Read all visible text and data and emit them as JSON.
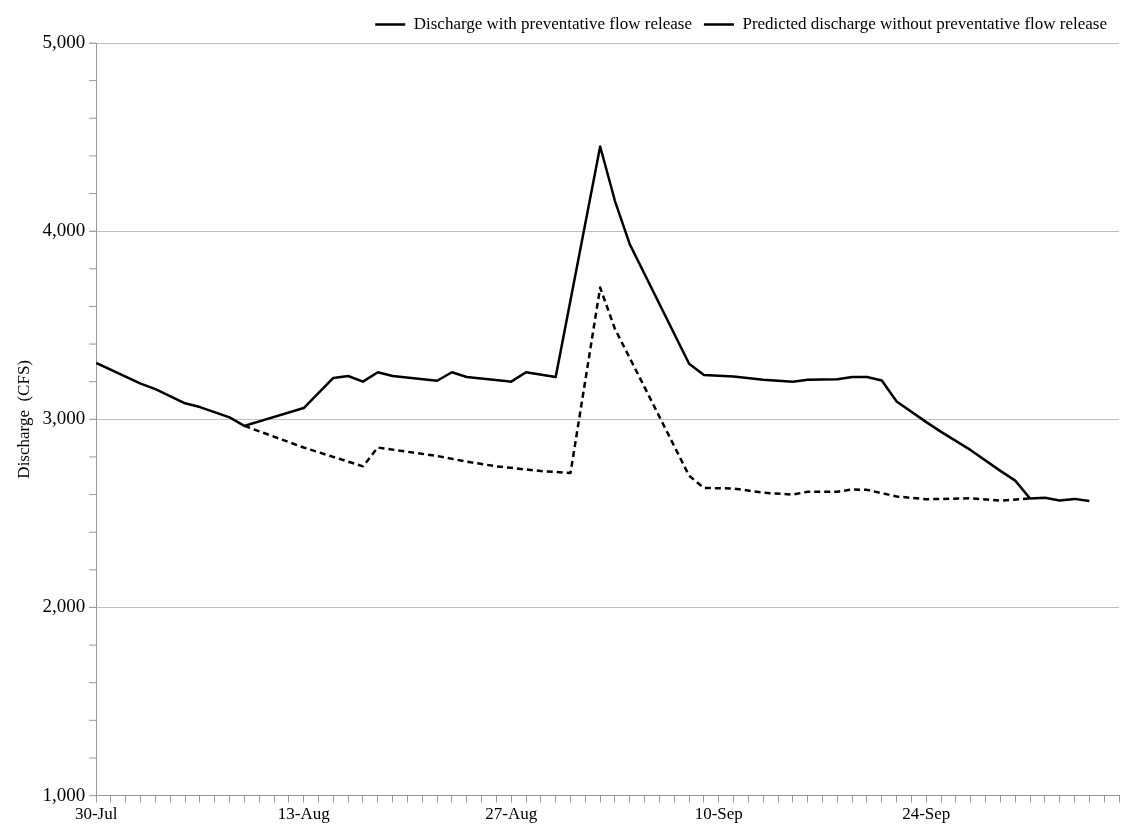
{
  "chart_data": {
    "type": "line",
    "ylabel": "Discharge  (CFS)",
    "legend": "top",
    "grid": "y",
    "marker": "none",
    "xlim": [
      "--07-30",
      "--10-07"
    ],
    "ylim": [
      1000,
      5000
    ],
    "yticks": [
      {
        "value": 1000,
        "label": "1,000"
      },
      {
        "value": 1200,
        "label": null
      },
      {
        "value": 1400,
        "label": null
      },
      {
        "value": 1600,
        "label": null
      },
      {
        "value": 1800,
        "label": null
      },
      {
        "value": 2000,
        "label": "2,000"
      },
      {
        "value": 2200,
        "label": null
      },
      {
        "value": 2400,
        "label": null
      },
      {
        "value": 2600,
        "label": null
      },
      {
        "value": 2800,
        "label": null
      },
      {
        "value": 3000,
        "label": "3,000"
      },
      {
        "value": 3200,
        "label": null
      },
      {
        "value": 3400,
        "label": null
      },
      {
        "value": 3600,
        "label": null
      },
      {
        "value": 3800,
        "label": null
      },
      {
        "value": 4000,
        "label": "4,000"
      },
      {
        "value": 4200,
        "label": null
      },
      {
        "value": 4400,
        "label": null
      },
      {
        "value": 4600,
        "label": null
      },
      {
        "value": 4800,
        "label": null
      },
      {
        "value": 5000,
        "label": "5,000"
      }
    ],
    "xticks": [
      {
        "value": "--07-30",
        "label": "30-Jul"
      },
      {
        "value": "--07-31",
        "label": null
      },
      {
        "value": "--08-01",
        "label": null
      },
      {
        "value": "--08-02",
        "label": null
      },
      {
        "value": "--08-03",
        "label": null
      },
      {
        "value": "--08-04",
        "label": null
      },
      {
        "value": "--08-05",
        "label": null
      },
      {
        "value": "--08-06",
        "label": null
      },
      {
        "value": "--08-07",
        "label": null
      },
      {
        "value": "--08-08",
        "label": null
      },
      {
        "value": "--08-09",
        "label": null
      },
      {
        "value": "--08-10",
        "label": null
      },
      {
        "value": "--08-11",
        "label": null
      },
      {
        "value": "--08-12",
        "label": null
      },
      {
        "value": "--08-13",
        "label": "13-Aug"
      },
      {
        "value": "--08-14",
        "label": null
      },
      {
        "value": "--08-15",
        "label": null
      },
      {
        "value": "--08-16",
        "label": null
      },
      {
        "value": "--08-17",
        "label": null
      },
      {
        "value": "--08-18",
        "label": null
      },
      {
        "value": "--08-19",
        "label": null
      },
      {
        "value": "--08-20",
        "label": null
      },
      {
        "value": "--08-21",
        "label": null
      },
      {
        "value": "--08-22",
        "label": null
      },
      {
        "value": "--08-23",
        "label": null
      },
      {
        "value": "--08-24",
        "label": null
      },
      {
        "value": "--08-25",
        "label": null
      },
      {
        "value": "--08-26",
        "label": null
      },
      {
        "value": "--08-27",
        "label": "27-Aug"
      },
      {
        "value": "--08-28",
        "label": null
      },
      {
        "value": "--08-29",
        "label": null
      },
      {
        "value": "--08-30",
        "label": null
      },
      {
        "value": "--08-31",
        "label": null
      },
      {
        "value": "--09-01",
        "label": null
      },
      {
        "value": "--09-02",
        "label": null
      },
      {
        "value": "--09-03",
        "label": null
      },
      {
        "value": "--09-04",
        "label": null
      },
      {
        "value": "--09-05",
        "label": null
      },
      {
        "value": "--09-06",
        "label": null
      },
      {
        "value": "--09-07",
        "label": null
      },
      {
        "value": "--09-08",
        "label": null
      },
      {
        "value": "--09-09",
        "label": null
      },
      {
        "value": "--09-10",
        "label": "10-Sep"
      },
      {
        "value": "--09-11",
        "label": null
      },
      {
        "value": "--09-12",
        "label": null
      },
      {
        "value": "--09-13",
        "label": null
      },
      {
        "value": "--09-14",
        "label": null
      },
      {
        "value": "--09-15",
        "label": null
      },
      {
        "value": "--09-16",
        "label": null
      },
      {
        "value": "--09-17",
        "label": null
      },
      {
        "value": "--09-18",
        "label": null
      },
      {
        "value": "--09-19",
        "label": null
      },
      {
        "value": "--09-20",
        "label": null
      },
      {
        "value": "--09-21",
        "label": null
      },
      {
        "value": "--09-22",
        "label": null
      },
      {
        "value": "--09-23",
        "label": null
      },
      {
        "value": "--09-24",
        "label": "24-Sep"
      },
      {
        "value": "--09-25",
        "label": null
      },
      {
        "value": "--09-26",
        "label": null
      },
      {
        "value": "--09-27",
        "label": null
      },
      {
        "value": "--09-28",
        "label": null
      },
      {
        "value": "--09-29",
        "label": null
      },
      {
        "value": "--09-30",
        "label": null
      },
      {
        "value": "--10-01",
        "label": null
      },
      {
        "value": "--10-02",
        "label": null
      },
      {
        "value": "--10-03",
        "label": null
      },
      {
        "value": "--10-04",
        "label": null
      },
      {
        "value": "--10-05",
        "label": null
      },
      {
        "value": "--10-06",
        "label": null
      },
      {
        "value": "--10-07",
        "label": null
      }
    ],
    "series": [
      {
        "name": "Discharge with preventative flow release",
        "color": "#000000",
        "line_style": "solid",
        "x": [
          "--07-30",
          "--08-02",
          "--08-03",
          "--08-05",
          "--08-06",
          "--08-08",
          "--08-09",
          "--08-13",
          "--08-15",
          "--08-16",
          "--08-17",
          "--08-18",
          "--08-19",
          "--08-22",
          "--08-23",
          "--08-24",
          "--08-27",
          "--08-28",
          "--08-30",
          "--09-02",
          "--09-03",
          "--09-04",
          "--09-08",
          "--09-09",
          "--09-11",
          "--09-13",
          "--09-15",
          "--09-16",
          "--09-18",
          "--09-19",
          "--09-20",
          "--09-21",
          "--09-22",
          "--09-24",
          "--09-25",
          "--09-27",
          "--09-29",
          "--09-30",
          "--10-01",
          "--10-02",
          "--10-03",
          "--10-04",
          "--10-05"
        ],
        "values": [
          3300,
          3190,
          3160,
          3085,
          3065,
          3010,
          2965,
          3060,
          3220,
          3230,
          3200,
          3250,
          3230,
          3205,
          3250,
          3225,
          3200,
          3250,
          3225,
          4450,
          4160,
          3930,
          3295,
          3236,
          3227,
          3210,
          3200,
          3210,
          3213,
          3225,
          3225,
          3206,
          3095,
          2985,
          2933,
          2836,
          2726,
          2674,
          2579,
          2583,
          2568,
          2577,
          2566
        ]
      },
      {
        "name": "Predicted discharge without preventative flow release",
        "color": "#000000",
        "line_style": "dashed",
        "x": [
          "--08-09",
          "--08-13",
          "--08-17",
          "--08-18",
          "--08-22",
          "--08-24",
          "--08-26",
          "--08-29",
          "--08-31",
          "--09-02",
          "--09-03",
          "--09-05",
          "--09-08",
          "--09-09",
          "--09-11",
          "--09-13",
          "--09-15",
          "--09-16",
          "--09-18",
          "--09-19",
          "--09-20",
          "--09-22",
          "--09-24",
          "--09-27",
          "--09-29",
          "--10-01"
        ],
        "values": [
          2965,
          2850,
          2750,
          2850,
          2805,
          2775,
          2750,
          2725,
          2715,
          3700,
          3480,
          3170,
          2700,
          2635,
          2632,
          2610,
          2600,
          2615,
          2615,
          2627,
          2625,
          2590,
          2575,
          2580,
          2568,
          2579
        ]
      }
    ]
  }
}
